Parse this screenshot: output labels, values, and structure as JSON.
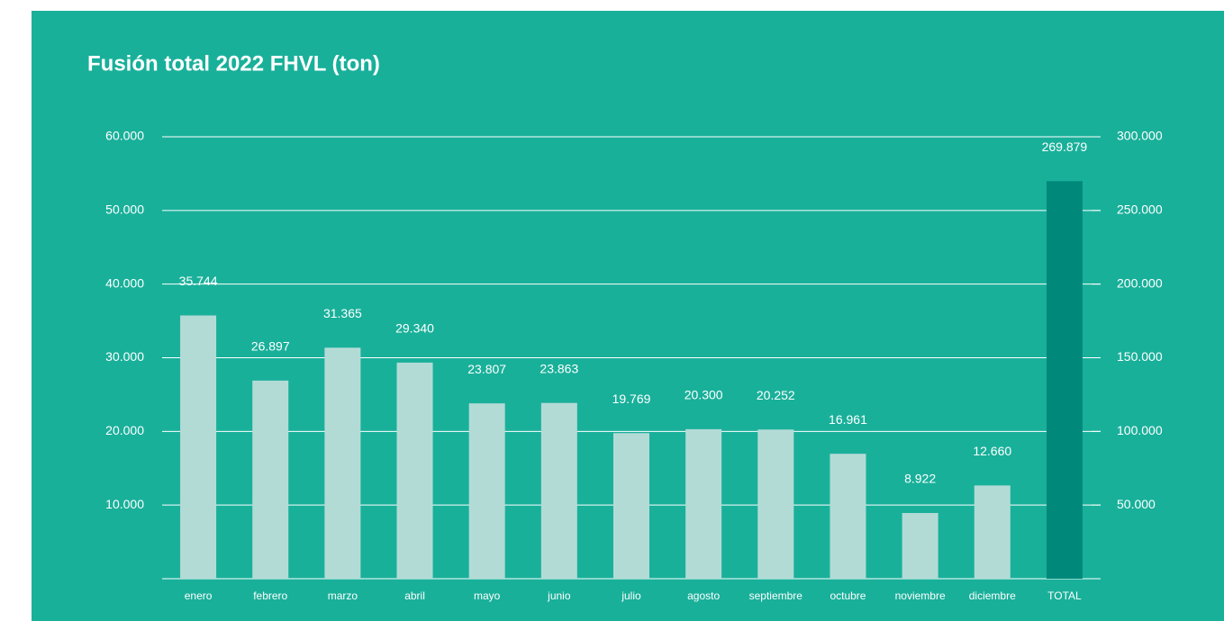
{
  "chart_data": {
    "type": "bar",
    "title": "Fusión total 2022 FHVL (ton)",
    "categories": [
      "enero",
      "febrero",
      "marzo",
      "abril",
      "mayo",
      "junio",
      "julio",
      "agosto",
      "septiembre",
      "octubre",
      "noviembre",
      "diciembre",
      "TOTAL"
    ],
    "series": [
      {
        "color": "#b3dbd6",
        "values": [
          35744,
          26897,
          31365,
          29340,
          23807,
          23863,
          19769,
          20300,
          20252,
          16961,
          8922,
          12660,
          null
        ],
        "value_labels": [
          "35.744",
          "26.897",
          "31.365",
          "29.340",
          "23.807",
          "23.863",
          "19.769",
          "20.300",
          "20.252",
          "16.961",
          "8.922",
          "12.660",
          null
        ]
      },
      {
        "color": "#00897b",
        "axis": "y2",
        "values": [
          null,
          null,
          null,
          null,
          null,
          null,
          null,
          null,
          null,
          null,
          null,
          null,
          269879
        ],
        "value_labels": [
          null,
          null,
          null,
          null,
          null,
          null,
          null,
          null,
          null,
          null,
          null,
          null,
          "269.879"
        ]
      }
    ],
    "ylim": [
      0,
      60000
    ],
    "yticks": [
      {
        "value": 10000,
        "label": "10.000"
      },
      {
        "value": 20000,
        "label": "20.000"
      },
      {
        "value": 30000,
        "label": "30.000"
      },
      {
        "value": 40000,
        "label": "40.000"
      },
      {
        "value": 50000,
        "label": "50.000"
      },
      {
        "value": 60000,
        "label": "60.000"
      }
    ],
    "y2lim": [
      0,
      300000
    ],
    "y2ticks": [
      {
        "value": 50000,
        "label": "50.000"
      },
      {
        "value": 100000,
        "label": "100.000"
      },
      {
        "value": 150000,
        "label": "150.000"
      },
      {
        "value": 200000,
        "label": "200.000"
      },
      {
        "value": 250000,
        "label": "250.000"
      },
      {
        "value": 300000,
        "label": "300.000"
      }
    ],
    "grid": true
  }
}
